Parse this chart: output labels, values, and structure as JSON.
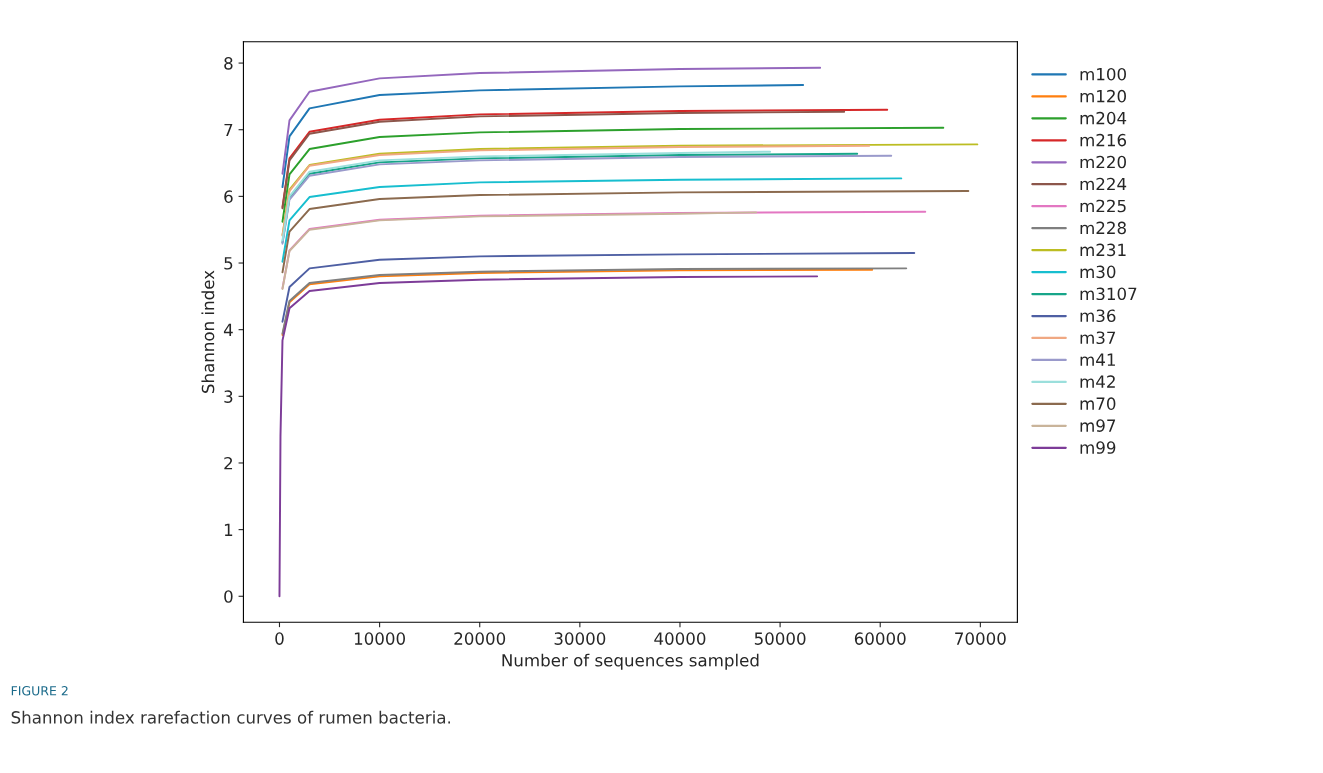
{
  "chart_data": {
    "type": "line",
    "xlabel": "Number of sequences sampled",
    "ylabel": "Shannon index",
    "xlim": [
      -3600,
      73700
    ],
    "ylim": [
      -0.39,
      8.32
    ],
    "xticks": [
      0,
      10000,
      20000,
      30000,
      40000,
      50000,
      60000,
      70000
    ],
    "yticks": [
      0,
      1,
      2,
      3,
      4,
      5,
      6,
      7,
      8
    ],
    "grid": false,
    "legend": "right",
    "marker": "none",
    "line_style": "solid",
    "annotations": [
      "FIGURE 2",
      "Shannon index rarefaction curves of rumen bacteria."
    ],
    "series": [
      {
        "name": "m100",
        "color": "#1f77b4",
        "x": [
          300,
          1000,
          3000,
          10000,
          20000,
          40000,
          52300
        ],
        "values": [
          6.14,
          6.9,
          7.32,
          7.52,
          7.59,
          7.65,
          7.67
        ]
      },
      {
        "name": "m120",
        "color": "#ff7f0e",
        "x": [
          300,
          1000,
          3000,
          10000,
          20000,
          40000,
          59200
        ],
        "values": [
          3.92,
          4.41,
          4.68,
          4.8,
          4.85,
          4.89,
          4.9
        ]
      },
      {
        "name": "m204",
        "color": "#2ca02c",
        "x": [
          300,
          1000,
          3000,
          10000,
          20000,
          40000,
          66300
        ],
        "values": [
          5.62,
          6.33,
          6.71,
          6.89,
          6.96,
          7.01,
          7.03
        ]
      },
      {
        "name": "m216",
        "color": "#d62728",
        "x": [
          300,
          1000,
          3000,
          10000,
          20000,
          40000,
          60700
        ],
        "values": [
          5.84,
          6.57,
          6.97,
          7.15,
          7.23,
          7.28,
          7.3
        ]
      },
      {
        "name": "m220",
        "color": "#9467bd",
        "x": [
          300,
          1000,
          3000,
          10000,
          20000,
          40000,
          54000
        ],
        "values": [
          6.34,
          7.14,
          7.57,
          7.77,
          7.85,
          7.91,
          7.93
        ]
      },
      {
        "name": "m224",
        "color": "#8c564b",
        "x": [
          300,
          1000,
          3000,
          10000,
          20000,
          40000,
          56400
        ],
        "values": [
          5.82,
          6.54,
          6.94,
          7.12,
          7.2,
          7.25,
          7.27
        ]
      },
      {
        "name": "m225",
        "color": "#e377c2",
        "x": [
          300,
          1000,
          3000,
          10000,
          20000,
          40000,
          64500
        ],
        "values": [
          4.62,
          5.19,
          5.51,
          5.65,
          5.71,
          5.75,
          5.77
        ]
      },
      {
        "name": "m228",
        "color": "#7f7f7f",
        "x": [
          300,
          1000,
          3000,
          10000,
          20000,
          40000,
          62600
        ],
        "values": [
          3.94,
          4.43,
          4.7,
          4.82,
          4.87,
          4.91,
          4.92
        ]
      },
      {
        "name": "m231",
        "color": "#bcbd22",
        "x": [
          300,
          1000,
          3000,
          10000,
          20000,
          40000,
          69700
        ],
        "values": [
          5.42,
          6.1,
          6.47,
          6.64,
          6.71,
          6.76,
          6.78
        ]
      },
      {
        "name": "m30",
        "color": "#17becf",
        "x": [
          300,
          1000,
          3000,
          10000,
          20000,
          40000,
          62100
        ],
        "values": [
          5.02,
          5.64,
          5.99,
          6.14,
          6.21,
          6.25,
          6.27
        ]
      },
      {
        "name": "m3107",
        "color": "#17a589",
        "x": [
          300,
          1000,
          3000,
          10000,
          20000,
          40000,
          57700
        ],
        "values": [
          5.31,
          5.98,
          6.34,
          6.51,
          6.57,
          6.62,
          6.64
        ]
      },
      {
        "name": "m36",
        "color": "#4e5fa3",
        "x": [
          300,
          1000,
          3000,
          10000,
          20000,
          40000,
          63400
        ],
        "values": [
          4.12,
          4.64,
          4.92,
          5.05,
          5.1,
          5.13,
          5.15
        ]
      },
      {
        "name": "m37",
        "color": "#f0a882",
        "x": [
          300,
          1000,
          3000,
          10000,
          20000,
          40000,
          58900
        ],
        "values": [
          5.41,
          6.08,
          6.46,
          6.62,
          6.69,
          6.74,
          6.76
        ]
      },
      {
        "name": "m41",
        "color": "#9a9acb",
        "x": [
          300,
          1000,
          3000,
          10000,
          20000,
          40000,
          61100
        ],
        "values": [
          5.29,
          5.95,
          6.31,
          6.48,
          6.54,
          6.59,
          6.61
        ]
      },
      {
        "name": "m42",
        "color": "#9bdfdc",
        "x": [
          300,
          1000,
          3000,
          10000,
          20000,
          40000,
          49000
        ],
        "values": [
          5.34,
          6.0,
          6.37,
          6.54,
          6.6,
          6.65,
          6.67
        ]
      },
      {
        "name": "m70",
        "color": "#8b6a4e",
        "x": [
          300,
          1000,
          3000,
          10000,
          20000,
          40000,
          68800
        ],
        "values": [
          4.86,
          5.47,
          5.81,
          5.96,
          6.02,
          6.06,
          6.08
        ]
      },
      {
        "name": "m97",
        "color": "#c9b49a",
        "x": [
          300,
          1000,
          3000,
          10000,
          20000,
          40000,
          47600
        ],
        "values": [
          4.61,
          5.18,
          5.5,
          5.64,
          5.7,
          5.74,
          5.76
        ]
      },
      {
        "name": "m99",
        "color": "#7d3c98",
        "x": [
          0,
          100,
          300,
          1000,
          3000,
          10000,
          20000,
          40000,
          53700
        ],
        "values": [
          0,
          2.4,
          3.84,
          4.32,
          4.58,
          4.7,
          4.75,
          4.79,
          4.8
        ]
      }
    ]
  }
}
